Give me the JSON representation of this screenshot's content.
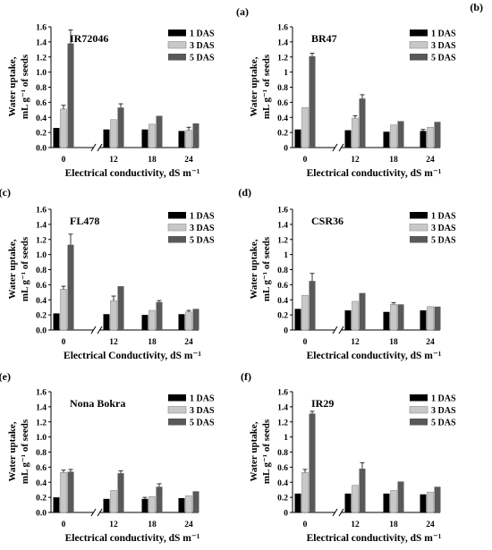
{
  "legend_labels": [
    "1 DAS",
    "3 DAS",
    "5 DAS"
  ],
  "colors": {
    "1 DAS": "#000000",
    "3 DAS": "#c8c8c8",
    "5 DAS": "#595959",
    "axis": "#000000"
  },
  "chart_data": [
    {
      "type": "bar",
      "panel_label": "(a)",
      "title": "IR72046",
      "xlabel": "Electrical conductivity, dS m⁻¹",
      "ylabel_line1": "Water uptake,",
      "ylabel_line2": "mL g⁻¹ of seeds",
      "ylim": [
        0,
        1.6
      ],
      "yticks": [
        "0.0",
        "0.2",
        "0.4",
        "0.6",
        "0.8",
        "1.0",
        "1.2",
        "1.4",
        "1.6"
      ],
      "categories": [
        "0",
        "12",
        "18",
        "24"
      ],
      "axis_break": true,
      "grid": false,
      "legend_position": "top-right",
      "series": [
        {
          "name": "1 DAS",
          "values": [
            0.26,
            0.24,
            0.24,
            0.22
          ],
          "errors": [
            0.0,
            0.0,
            0.0,
            0.0
          ]
        },
        {
          "name": "3 DAS",
          "values": [
            0.51,
            0.37,
            0.31,
            0.23
          ],
          "errors": [
            0.05,
            0.0,
            0.0,
            0.04
          ]
        },
        {
          "name": "5 DAS",
          "values": [
            1.38,
            0.53,
            0.42,
            0.32
          ],
          "errors": [
            0.18,
            0.05,
            0.0,
            0.0
          ]
        }
      ]
    },
    {
      "type": "bar",
      "panel_label": "(b)",
      "title": "BR47",
      "xlabel": "Electrical conductivity, dS m⁻¹",
      "ylabel_line1": "Water uptake,",
      "ylabel_line2": "mL g⁻¹ of seeds",
      "ylim": [
        0,
        1.6
      ],
      "yticks": [
        "0",
        "0.2",
        "0.4",
        "0.6",
        "0.8",
        "1",
        "1.2",
        "1.4",
        "1.6"
      ],
      "categories": [
        "0",
        "12",
        "18",
        "24"
      ],
      "axis_break": true,
      "grid": false,
      "legend_position": "top-right",
      "series": [
        {
          "name": "1 DAS",
          "values": [
            0.24,
            0.23,
            0.21,
            0.22
          ],
          "errors": [
            0.0,
            0.0,
            0.0,
            0.02
          ]
        },
        {
          "name": "3 DAS",
          "values": [
            0.53,
            0.39,
            0.3,
            0.27
          ],
          "errors": [
            0.0,
            0.03,
            0.0,
            0.0
          ]
        },
        {
          "name": "5 DAS",
          "values": [
            1.21,
            0.65,
            0.35,
            0.34
          ],
          "errors": [
            0.04,
            0.05,
            0.0,
            0.0
          ]
        }
      ]
    },
    {
      "type": "bar",
      "panel_label": "(c)",
      "title": "FL478",
      "xlabel": "Electrical Conductivity, dS m⁻¹",
      "ylabel_line1": "Water uptake,",
      "ylabel_line2": "mL g⁻¹ of seeds",
      "ylim": [
        0,
        1.6
      ],
      "yticks": [
        "0.0",
        "0.2",
        "0.4",
        "0.6",
        "0.8",
        "1.0",
        "1.2",
        "1.4",
        "1.6"
      ],
      "categories": [
        "0",
        "12",
        "18",
        "24"
      ],
      "axis_break": true,
      "grid": false,
      "legend_position": "top-right",
      "series": [
        {
          "name": "1 DAS",
          "values": [
            0.22,
            0.21,
            0.2,
            0.21
          ],
          "errors": [
            0.0,
            0.0,
            0.0,
            0.0
          ]
        },
        {
          "name": "3 DAS",
          "values": [
            0.54,
            0.39,
            0.26,
            0.24
          ],
          "errors": [
            0.04,
            0.06,
            0.0,
            0.02
          ]
        },
        {
          "name": "5 DAS",
          "values": [
            1.13,
            0.58,
            0.37,
            0.28
          ],
          "errors": [
            0.14,
            0.0,
            0.02,
            0.0
          ]
        }
      ]
    },
    {
      "type": "bar",
      "panel_label": "(d)",
      "title": "CSR36",
      "xlabel": "Electrical conductivity, dS m⁻¹",
      "ylabel_line1": "Water uptake,",
      "ylabel_line2": "mL g⁻¹ of seeds",
      "ylim": [
        0,
        1.6
      ],
      "yticks": [
        "0",
        "0.2",
        "0.4",
        "0.6",
        "0.8",
        "1",
        "1.2",
        "1.4",
        "1.6"
      ],
      "categories": [
        "0",
        "12",
        "18",
        "24"
      ],
      "axis_break": true,
      "grid": false,
      "legend_position": "top-right",
      "series": [
        {
          "name": "1 DAS",
          "values": [
            0.28,
            0.26,
            0.24,
            0.26
          ],
          "errors": [
            0.0,
            0.0,
            0.0,
            0.0
          ]
        },
        {
          "name": "3 DAS",
          "values": [
            0.46,
            0.38,
            0.34,
            0.31
          ],
          "errors": [
            0.0,
            0.0,
            0.02,
            0.0
          ]
        },
        {
          "name": "5 DAS",
          "values": [
            0.65,
            0.49,
            0.34,
            0.31
          ],
          "errors": [
            0.1,
            0.0,
            0.0,
            0.0
          ]
        }
      ]
    },
    {
      "type": "bar",
      "panel_label": "(e)",
      "title": "Nona Bokra",
      "xlabel": "Electrical conductivity, dS m⁻¹",
      "ylabel_line1": "Water uptake,",
      "ylabel_line2": "mL g⁻¹ of seeds",
      "ylim": [
        0,
        1.6
      ],
      "yticks": [
        "0.0",
        "0.2",
        "0.4",
        "0.6",
        "0.8",
        "1.0",
        "1.2",
        "1.4",
        "1.6"
      ],
      "categories": [
        "0",
        "12",
        "18",
        "24"
      ],
      "axis_break": true,
      "grid": false,
      "legend_position": "top-right",
      "series": [
        {
          "name": "1 DAS",
          "values": [
            0.2,
            0.18,
            0.18,
            0.19
          ],
          "errors": [
            0.0,
            0.0,
            0.02,
            0.0
          ]
        },
        {
          "name": "3 DAS",
          "values": [
            0.53,
            0.29,
            0.21,
            0.22
          ],
          "errors": [
            0.03,
            0.0,
            0.0,
            0.0
          ]
        },
        {
          "name": "5 DAS",
          "values": [
            0.54,
            0.52,
            0.34,
            0.28
          ],
          "errors": [
            0.03,
            0.03,
            0.04,
            0.0
          ]
        }
      ]
    },
    {
      "type": "bar",
      "panel_label": "(f)",
      "title": "IR29",
      "xlabel": "Electrical conductivity, dS m⁻¹",
      "ylabel_line1": "Water uptake,",
      "ylabel_line2": "mL g⁻¹ of seeds",
      "ylim": [
        0,
        1.6
      ],
      "yticks": [
        "0",
        "0.2",
        "0.4",
        "0.6",
        "0.8",
        "1",
        "1.2",
        "1.4",
        "1.6"
      ],
      "categories": [
        "0",
        "12",
        "18",
        "24"
      ],
      "axis_break": true,
      "grid": false,
      "legend_position": "top-right",
      "series": [
        {
          "name": "1 DAS",
          "values": [
            0.25,
            0.25,
            0.25,
            0.24
          ],
          "errors": [
            0.0,
            0.0,
            0.0,
            0.0
          ]
        },
        {
          "name": "3 DAS",
          "values": [
            0.53,
            0.36,
            0.29,
            0.27
          ],
          "errors": [
            0.04,
            0.0,
            0.0,
            0.0
          ]
        },
        {
          "name": "5 DAS",
          "values": [
            1.31,
            0.58,
            0.41,
            0.34
          ],
          "errors": [
            0.03,
            0.08,
            0.0,
            0.0
          ]
        }
      ]
    }
  ]
}
